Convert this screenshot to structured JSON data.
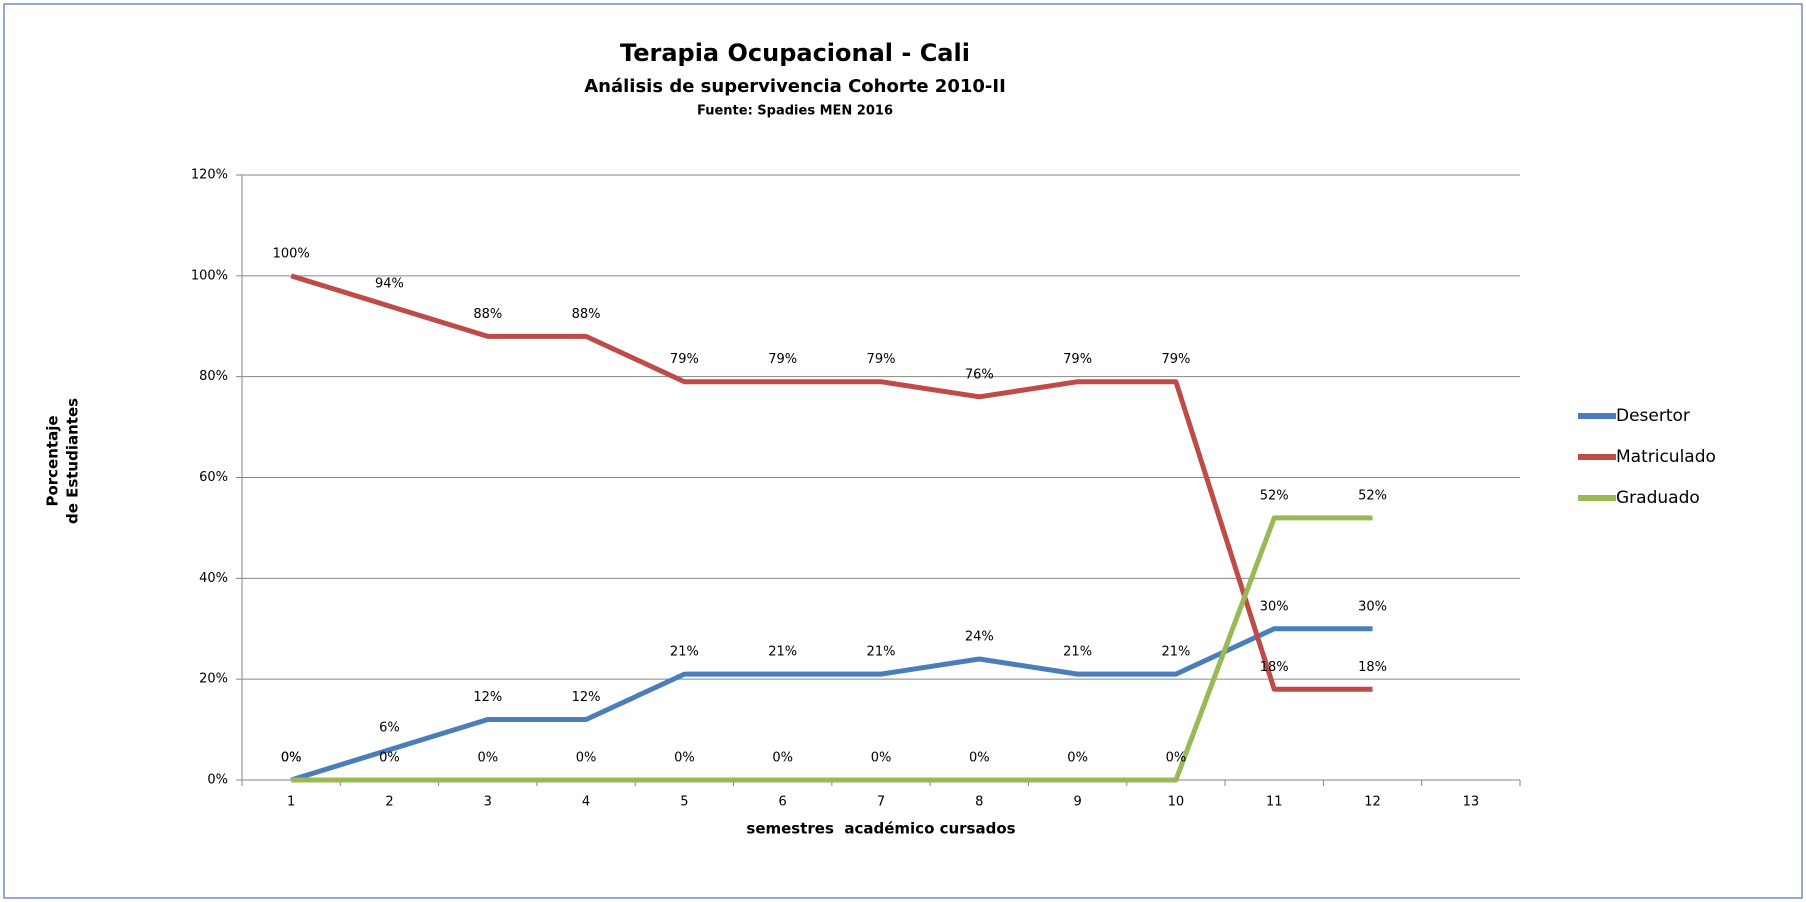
{
  "chart_data": {
    "type": "line",
    "title": "Terapia Ocupacional - Cali",
    "subtitle": "Análisis de supervivencia Cohorte 2010-II",
    "source": "Fuente: Spadies MEN 2016",
    "x_label": "semestres  académico cursados",
    "y_label": [
      "Porcentaje",
      "de Estudiantes"
    ],
    "categories": [
      "1",
      "2",
      "3",
      "4",
      "5",
      "6",
      "7",
      "8",
      "9",
      "10",
      "11",
      "12",
      "13"
    ],
    "series": [
      {
        "name": "Desertor",
        "color": "#4a7ebb",
        "values": [
          0,
          6,
          12,
          12,
          21,
          21,
          21,
          24,
          21,
          21,
          30,
          30,
          null
        ],
        "value_labels": [
          "0%",
          "6%",
          "12%",
          "12%",
          "21%",
          "21%",
          "21%",
          "24%",
          "21%",
          "21%",
          "30%",
          "30%",
          null
        ]
      },
      {
        "name": "Matriculado",
        "color": "#be4b48",
        "values": [
          100,
          94,
          88,
          88,
          79,
          79,
          79,
          76,
          79,
          79,
          18,
          18,
          null
        ],
        "value_labels": [
          "100%",
          "94%",
          "88%",
          "88%",
          "79%",
          "79%",
          "79%",
          "76%",
          "79%",
          "79%",
          "18%",
          "18%",
          null
        ]
      },
      {
        "name": "Graduado",
        "color": "#98b954",
        "values": [
          0,
          0,
          0,
          0,
          0,
          0,
          0,
          0,
          0,
          0,
          52,
          52,
          null
        ],
        "value_labels": [
          "0%",
          "0%",
          "0%",
          "0%",
          "0%",
          "0%",
          "0%",
          "0%",
          "0%",
          "0%",
          "52%",
          "52%",
          null
        ]
      }
    ],
    "ylim": [
      0,
      120
    ],
    "yticks": [
      {
        "value": 0,
        "label": "0%"
      },
      {
        "value": 20,
        "label": "20%"
      },
      {
        "value": 40,
        "label": "40%"
      },
      {
        "value": 60,
        "label": "60%"
      },
      {
        "value": 80,
        "label": "80%"
      },
      {
        "value": 100,
        "label": "100%"
      },
      {
        "value": 120,
        "label": "120%"
      }
    ],
    "grid": true,
    "legend": "right"
  }
}
